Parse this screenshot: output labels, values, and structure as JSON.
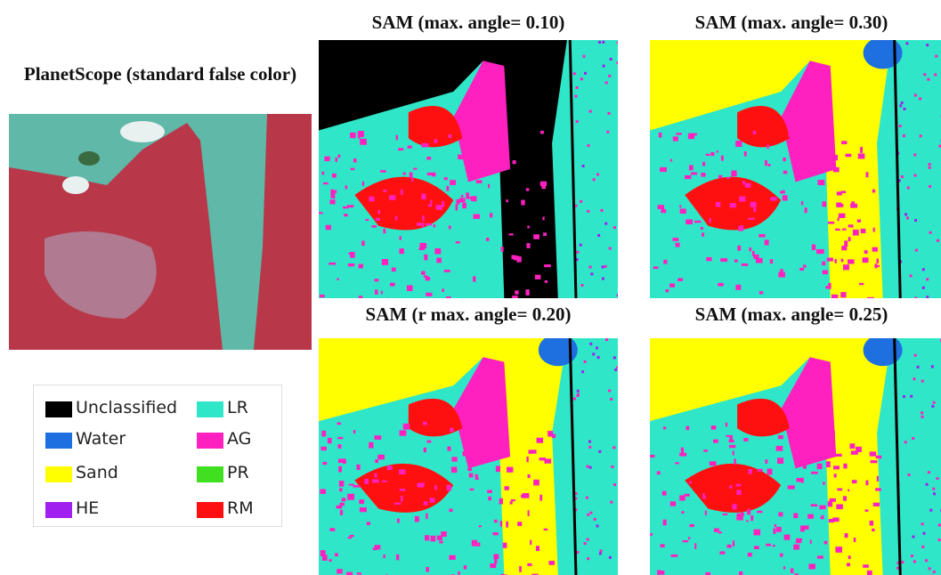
{
  "figure": {
    "source_panel": {
      "title": "PlanetScope (standard false color)"
    },
    "panels": [
      {
        "title": "SAM (max. angle= 0.10)"
      },
      {
        "title": "SAM (max. angle= 0.30)"
      },
      {
        "title": "SAM (r max. angle= 0.20)"
      },
      {
        "title": "SAM (max. angle= 0.25)"
      }
    ],
    "legend": [
      {
        "label": "Unclassified",
        "color": "#000000"
      },
      {
        "label": "Water",
        "color": "#1e6fe0"
      },
      {
        "label": "Sand",
        "color": "#ffff00"
      },
      {
        "label": "HE",
        "color": "#a020f0"
      },
      {
        "label": "LR",
        "color": "#30e6c8"
      },
      {
        "label": "AG",
        "color": "#ff20c0"
      },
      {
        "label": "PR",
        "color": "#40e020"
      },
      {
        "label": "RM",
        "color": "#ff1010"
      }
    ]
  }
}
